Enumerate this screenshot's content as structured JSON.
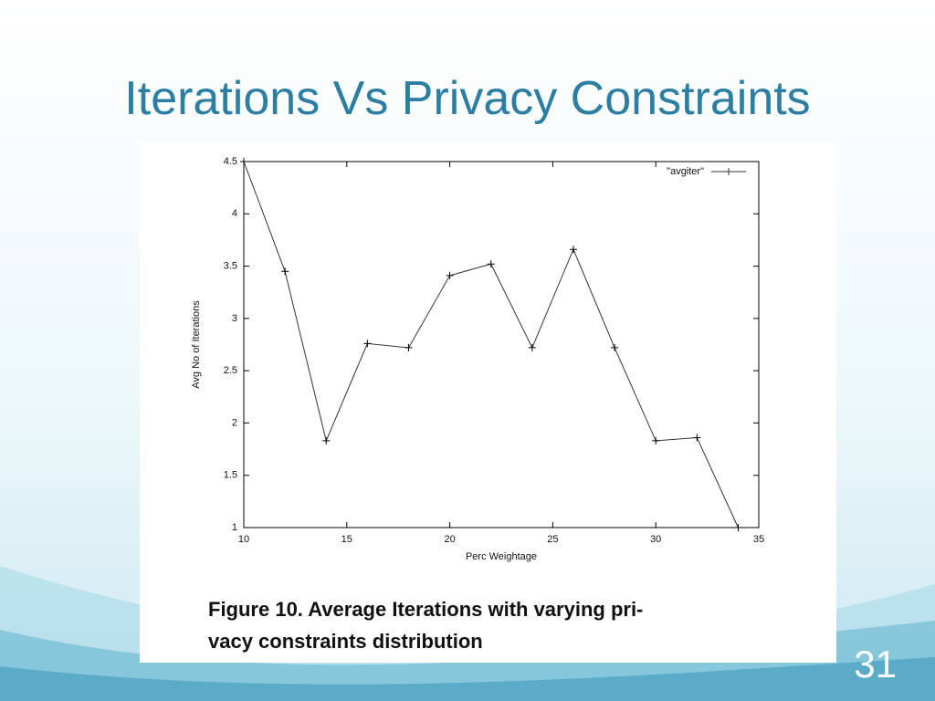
{
  "slide_title": "Iterations Vs Privacy Constraints",
  "page_number": "31",
  "caption": [
    "Figure 10. Average Iterations with varying pri-",
    "vacy constraints distribution"
  ],
  "chart_data": {
    "type": "line",
    "x_label": "Perc Weightage",
    "y_label": "Avg No of Iterations",
    "x": [
      10,
      12,
      14,
      16,
      18,
      20,
      22,
      24,
      26,
      28,
      30,
      32,
      34
    ],
    "series": [
      {
        "name": "\"avgiter\"",
        "color": "#333333",
        "values": [
          4.5,
          3.45,
          1.83,
          2.76,
          2.72,
          3.41,
          3.52,
          2.72,
          3.66,
          2.72,
          1.83,
          1.86,
          1.0
        ]
      }
    ],
    "xlim": [
      10,
      35
    ],
    "xticks": [
      10,
      15,
      20,
      25,
      30,
      35
    ],
    "ylim": [
      1,
      4.5
    ],
    "yticks": [
      1,
      1.5,
      2,
      2.5,
      3,
      3.5,
      4,
      4.5
    ],
    "legend": "top-right",
    "grid": false
  }
}
